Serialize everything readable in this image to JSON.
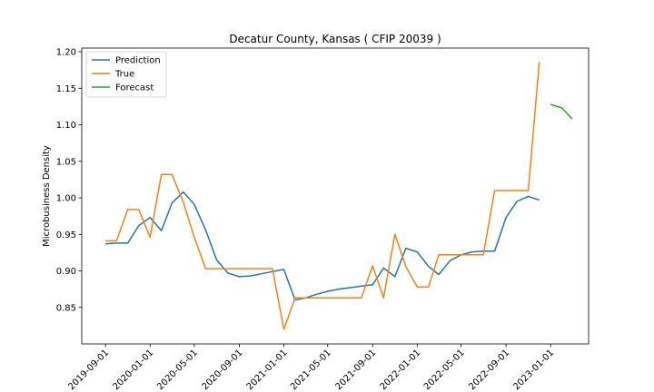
{
  "chart_data": {
    "type": "line",
    "title": "Decatur County, Kansas ( CFIP 20039 )",
    "xlabel": "",
    "ylabel": "Microbusiness Density",
    "x_ticks": [
      "2019-09-01",
      "2020-01-01",
      "2020-05-01",
      "2020-09-01",
      "2021-01-01",
      "2021-05-01",
      "2021-09-01",
      "2022-01-01",
      "2022-05-01",
      "2022-09-01",
      "2023-01-01"
    ],
    "y_ticks": [
      "0.85",
      "0.90",
      "0.95",
      "1.00",
      "1.05",
      "1.10",
      "1.15",
      "1.20"
    ],
    "ylim": [
      0.8,
      1.205
    ],
    "xlim": [
      "2019-06-28",
      "2023-04-15"
    ],
    "grid": false,
    "legend_position": "top-left",
    "series": [
      {
        "name": "Prediction",
        "color": "#1f77b4",
        "x": [
          "2019-09-01",
          "2019-10-01",
          "2019-11-01",
          "2019-12-01",
          "2020-01-01",
          "2020-02-01",
          "2020-03-01",
          "2020-04-01",
          "2020-05-01",
          "2020-06-01",
          "2020-07-01",
          "2020-08-01",
          "2020-09-01",
          "2020-10-01",
          "2020-11-01",
          "2020-12-01",
          "2021-01-01",
          "2021-02-01",
          "2021-03-01",
          "2021-04-01",
          "2021-05-01",
          "2021-06-01",
          "2021-07-01",
          "2021-08-01",
          "2021-09-01",
          "2021-10-01",
          "2021-11-01",
          "2021-12-01",
          "2022-01-01",
          "2022-02-01",
          "2022-03-01",
          "2022-04-01",
          "2022-05-01",
          "2022-06-01",
          "2022-07-01",
          "2022-08-01",
          "2022-09-01",
          "2022-10-01",
          "2022-11-01",
          "2022-12-01"
        ],
        "y": [
          0.937,
          0.938,
          0.938,
          0.962,
          0.973,
          0.955,
          0.993,
          1.008,
          0.991,
          0.956,
          0.915,
          0.897,
          0.892,
          0.893,
          0.896,
          0.899,
          0.902,
          0.86,
          0.863,
          0.868,
          0.872,
          0.875,
          0.877,
          0.879,
          0.881,
          0.904,
          0.892,
          0.931,
          0.926,
          0.906,
          0.895,
          0.914,
          0.922,
          0.926,
          0.927,
          0.927,
          0.973,
          0.995,
          1.002,
          0.997
        ]
      },
      {
        "name": "True",
        "color": "#ff7f0e",
        "x": [
          "2019-09-01",
          "2019-10-01",
          "2019-11-01",
          "2019-12-01",
          "2020-01-01",
          "2020-02-01",
          "2020-03-01",
          "2020-04-01",
          "2020-05-01",
          "2020-06-01",
          "2020-07-01",
          "2020-08-01",
          "2020-09-01",
          "2020-10-01",
          "2020-11-01",
          "2020-12-01",
          "2021-01-01",
          "2021-02-01",
          "2021-03-01",
          "2021-04-01",
          "2021-05-01",
          "2021-06-01",
          "2021-07-01",
          "2021-08-01",
          "2021-09-01",
          "2021-10-01",
          "2021-11-01",
          "2021-12-01",
          "2022-01-01",
          "2022-02-01",
          "2022-03-01",
          "2022-04-01",
          "2022-05-01",
          "2022-06-01",
          "2022-07-01",
          "2022-08-01",
          "2022-09-01",
          "2022-10-01",
          "2022-11-01",
          "2022-12-01"
        ],
        "y": [
          0.941,
          0.941,
          0.984,
          0.984,
          0.946,
          1.032,
          1.032,
          0.994,
          0.946,
          0.903,
          0.903,
          0.903,
          0.903,
          0.903,
          0.903,
          0.903,
          0.82,
          0.863,
          0.863,
          0.863,
          0.863,
          0.863,
          0.863,
          0.863,
          0.907,
          0.863,
          0.95,
          0.906,
          0.878,
          0.878,
          0.922,
          0.922,
          0.922,
          0.922,
          0.922,
          1.01,
          1.01,
          1.01,
          1.01,
          1.186
        ]
      },
      {
        "name": "Forecast",
        "color": "#2ca02c",
        "x": [
          "2023-01-01",
          "2023-02-01",
          "2023-03-01"
        ],
        "y": [
          1.128,
          1.123,
          1.108
        ]
      }
    ]
  }
}
